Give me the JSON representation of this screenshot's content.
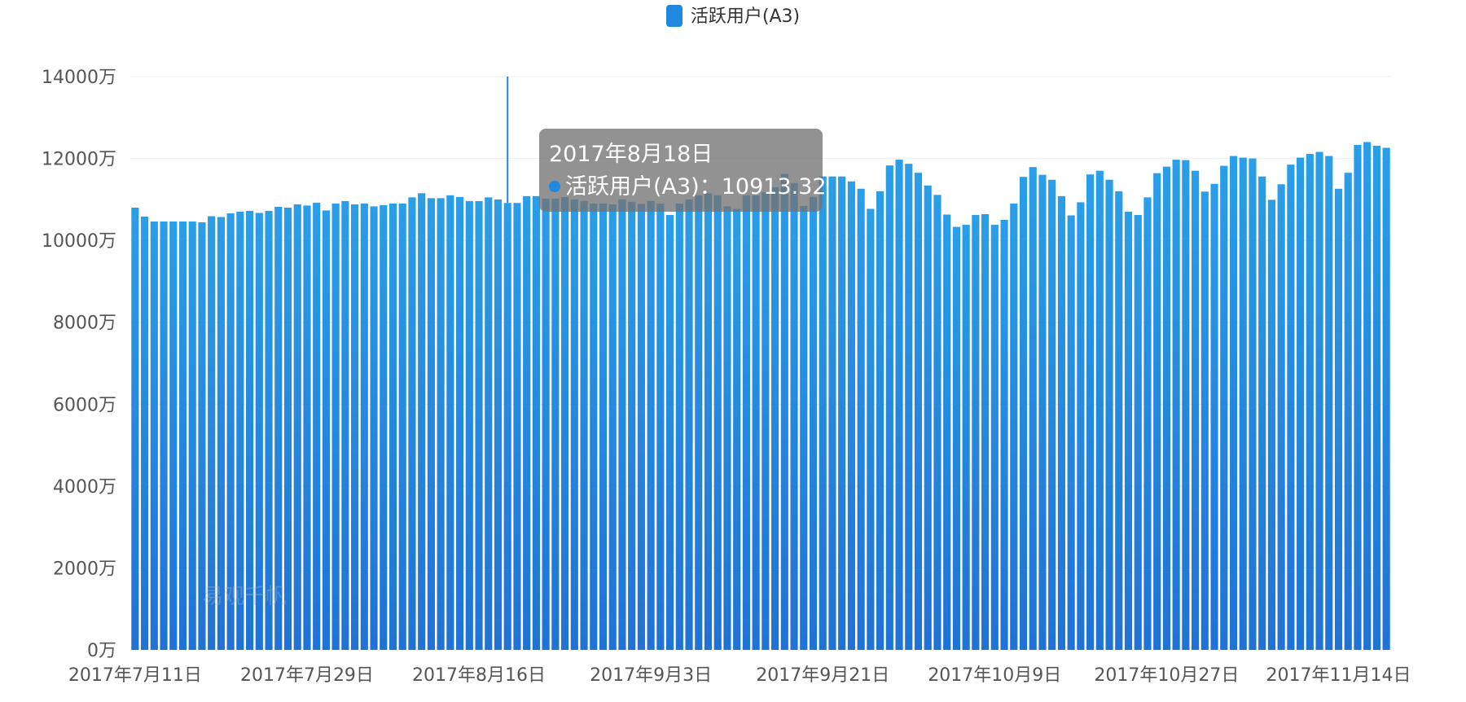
{
  "legend": {
    "label": "活跃用户(A3)",
    "color": "#1f88e0"
  },
  "tooltip": {
    "title": "2017年8月18日",
    "series_label": "活跃用户(A3)",
    "separator": "：",
    "value": "10913.32"
  },
  "watermark": "易观千帆",
  "colors": {
    "bar_top": "#2a9ee8",
    "bar_bottom": "#1f72d6",
    "axis_text": "#555555",
    "grid": "#eeeeee",
    "crosshair": "#1f88e0"
  },
  "chart_data": {
    "type": "bar",
    "series": [
      {
        "name": "活跃用户(A3)"
      }
    ],
    "start_date": "2017-07-11",
    "end_date": "2017-11-17",
    "x_tick_labels": [
      "2017年7月11日",
      "2017年7月29日",
      "2017年8月16日",
      "2017年9月3日",
      "2017年9月21日",
      "2017年10月9日",
      "2017年10月27日",
      "2017年11月14日"
    ],
    "y_tick_labels": [
      "0万",
      "2000万",
      "4000万",
      "6000万",
      "8000万",
      "10000万",
      "12000万",
      "14000万"
    ],
    "ylim": [
      0,
      14000
    ],
    "y_unit": "万",
    "grid": true,
    "legend_position": "top-center",
    "values": [
      10800,
      10580,
      10460,
      10460,
      10460,
      10460,
      10460,
      10440,
      10590,
      10570,
      10660,
      10700,
      10720,
      10670,
      10720,
      10820,
      10800,
      10880,
      10850,
      10920,
      10730,
      10900,
      10960,
      10880,
      10900,
      10830,
      10860,
      10900,
      10900,
      11050,
      11150,
      11030,
      11030,
      11100,
      11060,
      10960,
      10960,
      11050,
      11000,
      10913.32,
      10913,
      11080,
      11080,
      11020,
      11020,
      11060,
      11000,
      10960,
      10900,
      10900,
      10880,
      11000,
      10940,
      10890,
      10960,
      10900,
      10620,
      10900,
      11000,
      11100,
      11150,
      11100,
      10830,
      10770,
      11100,
      11100,
      11180,
      11300,
      11620,
      11400,
      10840,
      11060,
      11560,
      11560,
      11560,
      11440,
      11260,
      10770,
      11200,
      11830,
      11970,
      11870,
      11650,
      11340,
      11110,
      10630,
      10330,
      10380,
      10620,
      10640,
      10380,
      10500,
      10900,
      11550,
      11790,
      11600,
      11480,
      11080,
      10610,
      10930,
      11610,
      11700,
      11480,
      11200,
      10700,
      10620,
      11050,
      11640,
      11800,
      11970,
      11960,
      11700,
      11190,
      11380,
      11820,
      12060,
      12020,
      12000,
      11560,
      10990,
      11370,
      11850,
      12020,
      12110,
      12160,
      12060,
      11260,
      11650,
      12330,
      12400,
      12310,
      12260
    ]
  }
}
